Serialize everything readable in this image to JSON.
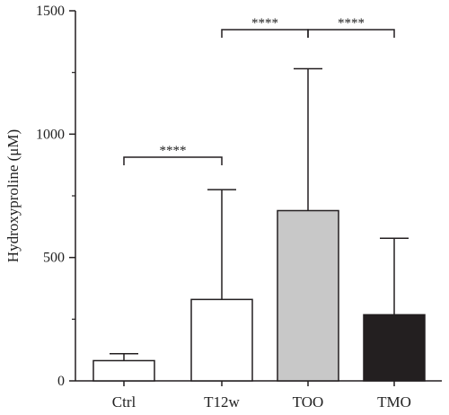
{
  "chart_data": {
    "type": "bar",
    "title": "",
    "xlabel": "",
    "ylabel": "Hydroxyproline (μM)",
    "categories": [
      "Ctrl",
      "T12w",
      "TOO",
      "TMO"
    ],
    "values": [
      82,
      330,
      690,
      268
    ],
    "errors_upper": [
      110,
      775,
      1265,
      578
    ],
    "ylim": [
      0,
      1500
    ],
    "yticks": [
      "0",
      "500",
      "1000",
      "1500"
    ],
    "bar_colors": [
      "#ffffff",
      "#ffffff",
      "#c8c8c8",
      "#231f20"
    ],
    "significance": [
      {
        "from": 0,
        "to": 1,
        "label": "****"
      },
      {
        "from": 1,
        "to": 2,
        "label": "****"
      },
      {
        "from": 2,
        "to": 3,
        "label": "****"
      }
    ],
    "grid": false,
    "legend": "none"
  }
}
